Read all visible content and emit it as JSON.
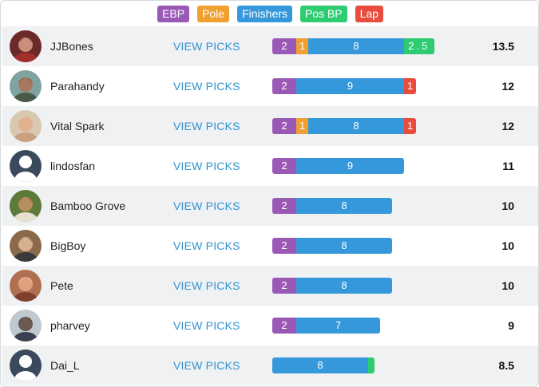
{
  "legend": [
    {
      "key": "ebp",
      "label": "EBP",
      "color": "#9b59b6"
    },
    {
      "key": "pole",
      "label": "Pole",
      "color": "#f0a030"
    },
    {
      "key": "finishers",
      "label": "Finishers",
      "color": "#3598db"
    },
    {
      "key": "posbp",
      "label": "Pos BP",
      "color": "#2ecc71"
    },
    {
      "key": "lap",
      "label": "Lap",
      "color": "#e74c3c"
    }
  ],
  "view_picks_label": "VIEW PICKS",
  "rows": [
    {
      "name": "JJBones",
      "avatar": "photo-red",
      "total": "13.5",
      "segments": [
        {
          "key": "ebp",
          "value": 2,
          "label": "2"
        },
        {
          "key": "pole",
          "value": 1,
          "label": "1"
        },
        {
          "key": "finishers",
          "value": 8,
          "label": "8"
        },
        {
          "key": "posbp",
          "value": 2.5,
          "label": "2.5"
        }
      ]
    },
    {
      "name": "Parahandy",
      "avatar": "photo-outdoor",
      "total": "12",
      "segments": [
        {
          "key": "ebp",
          "value": 2,
          "label": "2"
        },
        {
          "key": "finishers",
          "value": 9,
          "label": "9"
        },
        {
          "key": "lap",
          "value": 1,
          "label": "1"
        }
      ]
    },
    {
      "name": "Vital Spark",
      "avatar": "photo-blonde",
      "total": "12",
      "segments": [
        {
          "key": "ebp",
          "value": 2,
          "label": "2"
        },
        {
          "key": "pole",
          "value": 1,
          "label": "1"
        },
        {
          "key": "finishers",
          "value": 8,
          "label": "8"
        },
        {
          "key": "lap",
          "value": 1,
          "label": "1"
        }
      ]
    },
    {
      "name": "lindosfan",
      "avatar": "default",
      "total": "11",
      "segments": [
        {
          "key": "ebp",
          "value": 2,
          "label": "2"
        },
        {
          "key": "finishers",
          "value": 9,
          "label": "9"
        }
      ]
    },
    {
      "name": "Bamboo Grove",
      "avatar": "photo-bamboo",
      "total": "10",
      "segments": [
        {
          "key": "ebp",
          "value": 2,
          "label": "2"
        },
        {
          "key": "finishers",
          "value": 8,
          "label": "8"
        }
      ]
    },
    {
      "name": "BigBoy",
      "avatar": "photo-brown",
      "total": "10",
      "segments": [
        {
          "key": "ebp",
          "value": 2,
          "label": "2"
        },
        {
          "key": "finishers",
          "value": 8,
          "label": "8"
        }
      ]
    },
    {
      "name": "Pete",
      "avatar": "photo-face",
      "total": "10",
      "segments": [
        {
          "key": "ebp",
          "value": 2,
          "label": "2"
        },
        {
          "key": "finishers",
          "value": 8,
          "label": "8"
        }
      ]
    },
    {
      "name": "pharvey",
      "avatar": "photo-sky",
      "total": "9",
      "segments": [
        {
          "key": "ebp",
          "value": 2,
          "label": "2"
        },
        {
          "key": "finishers",
          "value": 7,
          "label": "7"
        }
      ]
    },
    {
      "name": "Dai_L",
      "avatar": "default",
      "total": "8.5",
      "segments": [
        {
          "key": "finishers",
          "value": 8,
          "label": "8"
        },
        {
          "key": "posbp",
          "value": 0.5,
          "label": ""
        }
      ]
    }
  ]
}
